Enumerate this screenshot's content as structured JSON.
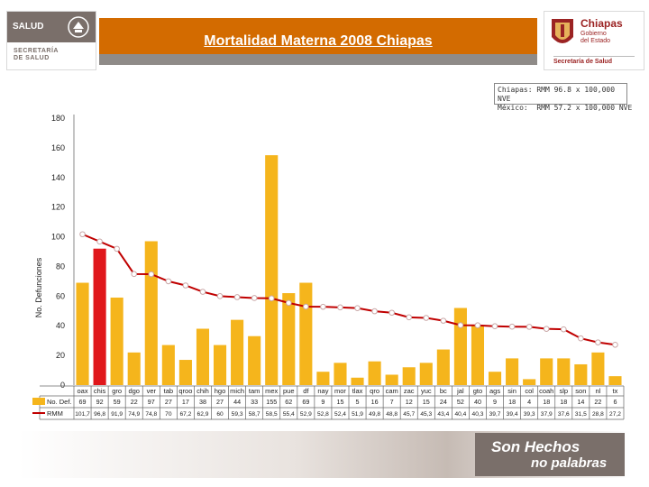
{
  "header": {
    "left_logo": {
      "word": "SALUD",
      "sub_line1": "SECRETARÍA",
      "sub_line2": "DE SALUD"
    },
    "right_logo": {
      "name": "Chiapas",
      "sub_line1": "Gobierno",
      "sub_line2": "del Estado",
      "dept": "Secretaría de Salud"
    }
  },
  "legend_note": {
    "line1": "Chiapas: RMM 96.8 x 100,000 NVE",
    "line2": "México:  RMM 57.2 x 100,000 NVE"
  },
  "footer": {
    "line1": "Son Hechos",
    "line2": "no palabras"
  },
  "colors": {
    "bar": "#f5b51c",
    "highlight_bar": "#e0171b",
    "line": "#c00000",
    "title_bg": "#d36b00",
    "brand_gray": "#7a6f6a"
  },
  "chart_data": {
    "type": "bar",
    "title": "Mortalidad  Materna 2008 Chiapas",
    "ylabel": "No. Defunciones",
    "ylim": [
      0,
      180
    ],
    "yticks": [
      0,
      20,
      40,
      60,
      80,
      100,
      120,
      140,
      160,
      180
    ],
    "highlight_category": "chis",
    "categories": [
      "oax",
      "chis",
      "gro",
      "dgo",
      "ver",
      "tab",
      "qroo",
      "chih",
      "hgo",
      "mich",
      "tam",
      "mex",
      "pue",
      "df",
      "nay",
      "mor",
      "tlax",
      "qro",
      "cam",
      "zac",
      "yuc",
      "bc",
      "jal",
      "gto",
      "ags",
      "sin",
      "col",
      "coah",
      "slp",
      "son",
      "nl",
      "tx"
    ],
    "series": [
      {
        "name": "No. Def.",
        "type": "bar",
        "values": [
          69,
          92,
          59,
          22,
          97,
          27,
          17,
          38,
          27,
          44,
          33,
          155,
          62,
          69,
          9,
          15,
          5,
          16,
          7,
          12,
          15,
          24,
          52,
          40,
          9,
          18,
          4,
          18,
          18,
          14,
          22,
          6
        ],
        "labels": [
          "69",
          "92",
          "59",
          "22",
          "97",
          "27",
          "17",
          "38",
          "27",
          "44",
          "33",
          "155",
          "62",
          "69",
          "9",
          "15",
          "5",
          "16",
          "7",
          "12",
          "15",
          "24",
          "52",
          "40",
          "9",
          "18",
          "4",
          "18",
          "18",
          "14",
          "22",
          "6"
        ]
      },
      {
        "name": "RMM",
        "type": "line",
        "values": [
          101.7,
          96.8,
          91.9,
          74.9,
          74.8,
          70,
          67.2,
          62.9,
          60,
          59.3,
          58.7,
          58.5,
          55.4,
          52.9,
          52.8,
          52.4,
          51.9,
          49.8,
          48.8,
          45.7,
          45.3,
          43.4,
          40.4,
          40.3,
          39.7,
          39.4,
          39.3,
          37.9,
          37.6,
          31.5,
          28.8,
          27.2
        ],
        "labels": [
          "101,7",
          "96,8",
          "91,9",
          "74,9",
          "74,8",
          "70",
          "67,2",
          "62,9",
          "60",
          "59,3",
          "58,7",
          "58,5",
          "55,4",
          "52,9",
          "52,8",
          "52,4",
          "51,9",
          "49,8",
          "48,8",
          "45,7",
          "45,3",
          "43,4",
          "40,4",
          "40,3",
          "39,7",
          "39,4",
          "39,3",
          "37,9",
          "37,6",
          "31,5",
          "28,8",
          "27,2"
        ]
      }
    ]
  }
}
